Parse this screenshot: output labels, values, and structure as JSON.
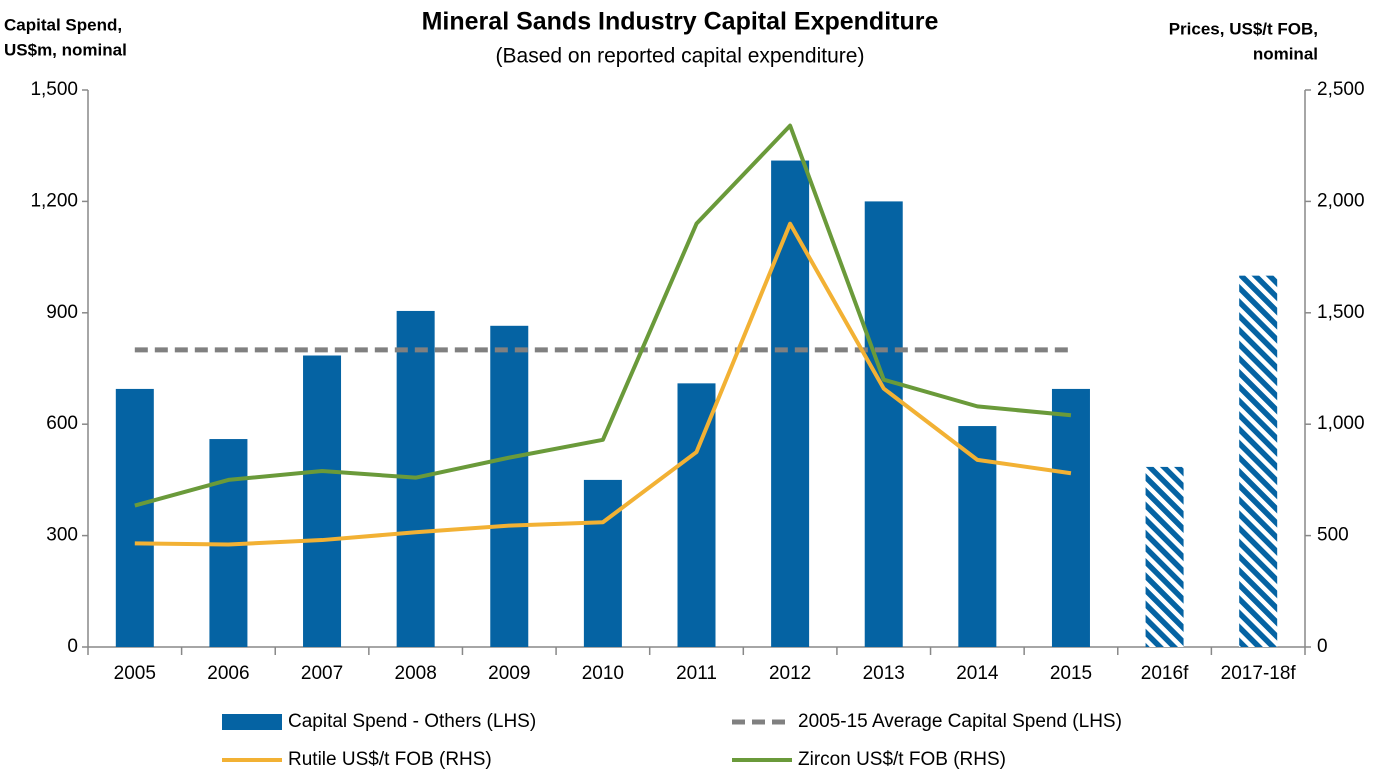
{
  "chart_data": {
    "type": "bar-line",
    "title": "Mineral Sands Industry Capital Expenditure",
    "subtitle": "(Based on reported capital expenditure)",
    "y_label": [
      "Capital Spend,",
      "US$m, nominal"
    ],
    "y2_label": [
      "Prices, US$/t FOB,",
      "nominal"
    ],
    "categories": [
      "2005",
      "2006",
      "2007",
      "2008",
      "2009",
      "2010",
      "2011",
      "2012",
      "2013",
      "2014",
      "2015",
      "2016f",
      "2017-18f"
    ],
    "series": [
      {
        "name": "Capital Spend - Others (LHS)",
        "type": "bar",
        "color": "#0563a3",
        "axis": "y",
        "values": [
          695,
          560,
          785,
          905,
          865,
          450,
          710,
          1310,
          1200,
          595,
          695,
          485,
          1000
        ],
        "hatched": [
          false,
          false,
          false,
          false,
          false,
          false,
          false,
          false,
          false,
          false,
          false,
          true,
          true
        ]
      },
      {
        "name": "2005-15 Average Capital Spend (LHS)",
        "type": "dashed-line",
        "color": "#808080",
        "axis": "y",
        "values": [
          800,
          800,
          800,
          800,
          800,
          800,
          800,
          800,
          800,
          800,
          800,
          null,
          null
        ]
      },
      {
        "name": "Rutile US$/t FOB (RHS)",
        "type": "line",
        "color": "#f2b134",
        "axis": "y2",
        "values": [
          465,
          460,
          480,
          515,
          545,
          560,
          875,
          1900,
          1160,
          840,
          780,
          null,
          null
        ]
      },
      {
        "name": "Zircon US$/t FOB (RHS)",
        "type": "line",
        "color": "#6a9a3a",
        "axis": "y2",
        "values": [
          635,
          750,
          790,
          760,
          850,
          930,
          1900,
          2340,
          1200,
          1080,
          1040,
          null,
          null
        ]
      }
    ],
    "ylim": [
      0,
      1500
    ],
    "yticks": [
      0,
      300,
      600,
      900,
      {
        "value": 1200,
        "label": "1,200"
      },
      {
        "value": 1500,
        "label": "1,500"
      }
    ],
    "y2lim": [
      0,
      2500
    ],
    "y2ticks": [
      0,
      500,
      {
        "value": 1000,
        "label": "1,000"
      },
      {
        "value": 1500,
        "label": "1,500"
      },
      {
        "value": 2000,
        "label": "2,000"
      },
      {
        "value": 2500,
        "label": "2,500"
      }
    ],
    "grid": false
  }
}
